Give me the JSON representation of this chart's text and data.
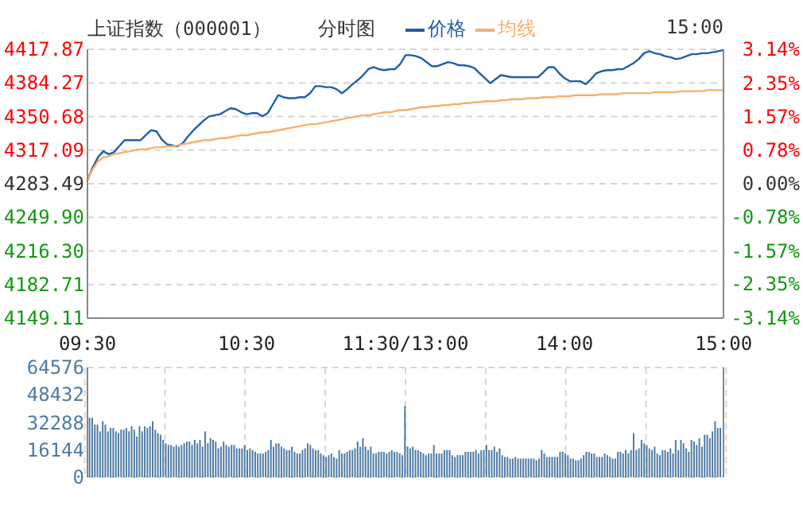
{
  "chart_data": [
    {
      "type": "line",
      "title": "上证指数（000001）",
      "subtitle": "分时图",
      "annotations": [
        "15:00"
      ],
      "legend": "top",
      "grid": true,
      "categories": [
        "09:30",
        null,
        null,
        null,
        null,
        null,
        null,
        null,
        null,
        null,
        null,
        null,
        null,
        null,
        null,
        null,
        null,
        null,
        null,
        null,
        null,
        null,
        null,
        null,
        null,
        null,
        null,
        null,
        null,
        null,
        "10:30",
        null,
        null,
        null,
        null,
        null,
        null,
        null,
        null,
        null,
        null,
        null,
        null,
        null,
        null,
        null,
        null,
        null,
        null,
        null,
        null,
        null,
        null,
        null,
        null,
        null,
        null,
        null,
        null,
        null,
        "11:30/13:00",
        null,
        null,
        null,
        null,
        null,
        null,
        null,
        null,
        null,
        null,
        null,
        null,
        null,
        null,
        null,
        null,
        null,
        null,
        null,
        null,
        null,
        null,
        null,
        null,
        null,
        null,
        null,
        null,
        null,
        "14:00",
        null,
        null,
        null,
        null,
        null,
        null,
        null,
        null,
        null,
        null,
        null,
        null,
        null,
        null,
        null,
        null,
        null,
        null,
        null,
        null,
        null,
        null,
        null,
        null,
        null,
        null,
        null,
        null,
        null,
        "15:00"
      ],
      "ylim": [
        4149.11,
        4417.87
      ],
      "yticks": [
        4149.11,
        4182.71,
        {
          "value": 4216.3,
          "label": "4216.30"
        },
        {
          "value": 4249.9,
          "label": "4249.90"
        },
        4283.49,
        4317.09,
        4350.68,
        4384.27,
        4417.87
      ],
      "y2lim": [
        -3.14,
        3.14
      ],
      "y2ticks": [
        {
          "value": -3.14,
          "label": "-3.14%"
        },
        {
          "value": -2.35,
          "label": "-2.35%"
        },
        {
          "value": -1.57,
          "label": "-1.57%"
        },
        {
          "value": -0.78,
          "label": "-0.78%"
        },
        {
          "value": 0,
          "label": "0.00%"
        },
        {
          "value": 0.78,
          "label": "0.78%"
        },
        {
          "value": 1.57,
          "label": "1.57%"
        },
        {
          "value": 2.35,
          "label": "2.35%"
        },
        {
          "value": 3.14,
          "label": "3.14%"
        }
      ],
      "series": [
        {
          "name": "价格",
          "color": "#1f5fa8",
          "values": [
            4287,
            4300,
            4310,
            4316,
            4313,
            4315,
            4321,
            4327,
            4327,
            4327,
            4327,
            4332,
            4337,
            4336,
            4328,
            4323,
            4322,
            4321,
            4324,
            4331,
            4337,
            4342,
            4347,
            4351,
            4352,
            4353,
            4356,
            4359,
            4358,
            4355,
            4353,
            4354,
            4354,
            4351,
            4354,
            4363,
            4372,
            4370,
            4369,
            4369,
            4370,
            4370,
            4374,
            4381,
            4381,
            4380,
            4380,
            4378,
            4374,
            4378,
            4383,
            4387,
            4392,
            4398,
            4400,
            4398,
            4397,
            4398,
            4398,
            4403,
            4412,
            4412,
            4411,
            4409,
            4405,
            4401,
            4401,
            4403,
            4405,
            4404,
            4402,
            4402,
            4401,
            4399,
            4394,
            4389,
            4384,
            4388,
            4392,
            4391,
            4390,
            4390,
            4390,
            4390,
            4390,
            4390,
            4395,
            4400,
            4400,
            4394,
            4389,
            4386,
            4386,
            4386,
            4383,
            4388,
            4394,
            4396,
            4397,
            4397,
            4398,
            4398,
            4401,
            4404,
            4408,
            4414,
            4416,
            4414,
            4413,
            4411,
            4410,
            4408,
            4409,
            4411,
            4413,
            4413,
            4414,
            4414,
            4415,
            4416,
            4417
          ]
        },
        {
          "name": "均线",
          "color": "#f5b06a",
          "values": [
            4287,
            4298,
            4306,
            4310,
            4311,
            4313,
            4314,
            4315,
            4316,
            4317,
            4318,
            4318,
            4319,
            4320,
            4320,
            4321,
            4321,
            4322,
            4323,
            4324,
            4325,
            4326,
            4327,
            4327,
            4328,
            4329,
            4329,
            4330,
            4331,
            4332,
            4332,
            4333,
            4334,
            4335,
            4335,
            4336,
            4337,
            4338,
            4339,
            4340,
            4341,
            4342,
            4343,
            4343,
            4344,
            4345,
            4346,
            4347,
            4348,
            4349,
            4350,
            4351,
            4352,
            4352,
            4353,
            4354,
            4355,
            4355,
            4356,
            4357,
            4357,
            4358,
            4359,
            4360,
            4360,
            4361,
            4361,
            4362,
            4362,
            4363,
            4363,
            4364,
            4364,
            4365,
            4365,
            4366,
            4366,
            4366,
            4367,
            4367,
            4368,
            4368,
            4368,
            4369,
            4369,
            4369,
            4370,
            4370,
            4370,
            4371,
            4371,
            4371,
            4372,
            4372,
            4372,
            4372,
            4372,
            4373,
            4373,
            4373,
            4373,
            4374,
            4374,
            4374,
            4374,
            4374,
            4374,
            4375,
            4375,
            4375,
            4375,
            4375,
            4376,
            4376,
            4376,
            4376,
            4376,
            4377,
            4377,
            4377,
            4377
          ]
        }
      ]
    },
    {
      "type": "bar",
      "grid": true,
      "tick_labels": "y",
      "categories": [
        null,
        null,
        null,
        null,
        null,
        null,
        null,
        null,
        null,
        null,
        null,
        null,
        null,
        null,
        null,
        null,
        null,
        null,
        null,
        null,
        null,
        null,
        null,
        null,
        null,
        null,
        null,
        null,
        null,
        null,
        null,
        null,
        null,
        null,
        null,
        null,
        null,
        null,
        null,
        null,
        null,
        null,
        null,
        null,
        null,
        null,
        null,
        null,
        null,
        null,
        null,
        null,
        null,
        null,
        null,
        null,
        null,
        null,
        null,
        null,
        null,
        null,
        null,
        null,
        null,
        null,
        null,
        null,
        null,
        null,
        null,
        null,
        null,
        null,
        null,
        null,
        null,
        null,
        null,
        null,
        null,
        null,
        null,
        null,
        null,
        null,
        null,
        null,
        null,
        null,
        null,
        null,
        null,
        null,
        null,
        null,
        null,
        null,
        null,
        null,
        null,
        null,
        null,
        null,
        null,
        null,
        null,
        null,
        null,
        null,
        null,
        null,
        null,
        null,
        null,
        null,
        null,
        null,
        null,
        null,
        null,
        null,
        null,
        null,
        null,
        null,
        null,
        null,
        null,
        null,
        null,
        null,
        null,
        null,
        null,
        null,
        null,
        null,
        null,
        null,
        null,
        null,
        null,
        null,
        null,
        null,
        null,
        null,
        null,
        null,
        null,
        null,
        null,
        null,
        null,
        null,
        null,
        null,
        null,
        null,
        null,
        null,
        null,
        null,
        null,
        null,
        null,
        null,
        null,
        null,
        null,
        null,
        null,
        null,
        null,
        null,
        null,
        null,
        null,
        null,
        null,
        null,
        null,
        null,
        null,
        null,
        null,
        null,
        null,
        null,
        null,
        null,
        null,
        null,
        null,
        null,
        null,
        null,
        null,
        null,
        null,
        null,
        null,
        null,
        null,
        null,
        null,
        null,
        null,
        null,
        null,
        null,
        null,
        null,
        null,
        null,
        null,
        null,
        null,
        null,
        null,
        null,
        null,
        null,
        null,
        null,
        null,
        null,
        null,
        null,
        null,
        null,
        null,
        null,
        null,
        null,
        null,
        null,
        null,
        null,
        null
      ],
      "ylim": [
        0,
        64576
      ],
      "yticks": [
        0,
        16144,
        32288,
        48432,
        64576
      ],
      "series": [
        {
          "color": "#4f7ba3",
          "values": [
            35000,
            35000,
            31000,
            31000,
            27000,
            33000,
            31000,
            27000,
            29000,
            29000,
            27000,
            26000,
            28000,
            28000,
            29000,
            27000,
            30000,
            28000,
            24000,
            30000,
            27000,
            30000,
            29000,
            30000,
            33000,
            28000,
            26000,
            25000,
            22000,
            20000,
            19000,
            19000,
            18000,
            19000,
            18000,
            19000,
            20000,
            21000,
            21000,
            19000,
            22000,
            20000,
            22000,
            18000,
            27000,
            20000,
            23000,
            22000,
            21000,
            17000,
            18000,
            21000,
            19000,
            18000,
            19000,
            19000,
            17000,
            17000,
            17000,
            19000,
            16000,
            17000,
            16000,
            15000,
            14000,
            14000,
            14000,
            15000,
            16000,
            22000,
            18000,
            20000,
            20000,
            18000,
            17000,
            16000,
            16000,
            18000,
            15000,
            14000,
            14000,
            16000,
            17000,
            20000,
            19000,
            17000,
            16000,
            16000,
            14000,
            13000,
            12000,
            13000,
            14000,
            12000,
            11000,
            16000,
            14000,
            14000,
            15000,
            16000,
            16000,
            17000,
            21000,
            18000,
            23000,
            18000,
            16000,
            18000,
            14000,
            14000,
            15000,
            15000,
            15000,
            14000,
            15000,
            16000,
            15000,
            15000,
            14000,
            13000,
            42000,
            18000,
            17000,
            18000,
            16000,
            16000,
            15000,
            14000,
            13000,
            14000,
            14000,
            19000,
            14000,
            14000,
            14000,
            16000,
            16000,
            16000,
            13000,
            12000,
            13000,
            13000,
            13000,
            15000,
            15000,
            15000,
            15000,
            16000,
            14000,
            16000,
            16000,
            19000,
            16000,
            16000,
            18000,
            15000,
            17000,
            13000,
            12000,
            12000,
            11000,
            11000,
            12000,
            11000,
            11000,
            11000,
            11000,
            11000,
            11000,
            11000,
            10000,
            11000,
            16000,
            14000,
            12000,
            12000,
            12000,
            12000,
            12000,
            15000,
            15000,
            14000,
            13000,
            11000,
            11000,
            10000,
            10000,
            11000,
            13000,
            15000,
            15000,
            14000,
            14000,
            12000,
            12000,
            12000,
            14000,
            13000,
            12000,
            11000,
            11000,
            15000,
            15000,
            14000,
            16000,
            14000,
            16000,
            26000,
            16000,
            17000,
            22000,
            20000,
            19000,
            17000,
            16000,
            18000,
            14000,
            13000,
            16000,
            16000,
            15000,
            17000,
            14000,
            22000,
            16000,
            22000,
            20000,
            17000,
            15000,
            22000,
            21000,
            19000,
            23000,
            18000,
            25000,
            25000,
            23000,
            27000,
            33000,
            29000,
            29000
          ]
        }
      ]
    }
  ]
}
